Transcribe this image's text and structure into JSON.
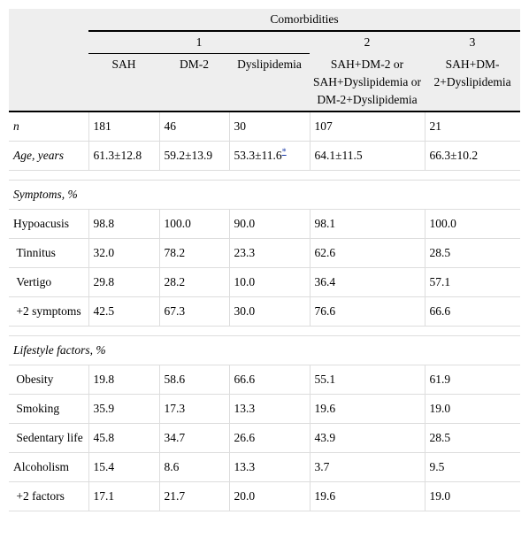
{
  "header": {
    "group": "Comorbidities",
    "subgroups": [
      "1",
      "2",
      "3"
    ],
    "columns": [
      "SAH",
      "DM-2",
      "Dyslipidemia",
      "SAH+DM-2 or SAH+Dyslipidemia or DM-2+Dyslipidemia",
      "SAH+DM-2+Dyslipidemia"
    ]
  },
  "summary_rows": [
    [
      "n",
      "181",
      "46",
      "30",
      "107",
      "21"
    ],
    [
      "Age, years",
      "61.3±12.8",
      "59.2±13.9",
      "53.3±11.6",
      "64.1±11.5",
      "66.3±10.2"
    ]
  ],
  "age_note_mark": "*",
  "sections": [
    {
      "title": "Symptoms, %",
      "rows": [
        [
          "Hypoacusis",
          "98.8",
          "100.0",
          "90.0",
          "98.1",
          "100.0"
        ],
        [
          " Tinnitus",
          "32.0",
          "78.2",
          "23.3",
          "62.6",
          "28.5"
        ],
        [
          " Vertigo",
          "29.8",
          "28.2",
          "10.0",
          "36.4",
          "57.1"
        ],
        [
          " +2 symptoms",
          "42.5",
          "67.3",
          "30.0",
          "76.6",
          "66.6"
        ]
      ]
    },
    {
      "title": "Lifestyle factors, %",
      "rows": [
        [
          " Obesity",
          "19.8",
          "58.6",
          "66.6",
          "55.1",
          "61.9"
        ],
        [
          " Smoking",
          "35.9",
          "17.3",
          "13.3",
          "19.6",
          "19.0"
        ],
        [
          " Sedentary life",
          "45.8",
          "34.7",
          "26.6",
          "43.9",
          "28.5"
        ],
        [
          "Alcoholism",
          "15.4",
          "8.6",
          "13.3",
          "3.7",
          "9.5"
        ],
        [
          " +2 factors",
          "17.1",
          "21.7",
          "20.0",
          "19.6",
          "19.0"
        ]
      ]
    }
  ]
}
